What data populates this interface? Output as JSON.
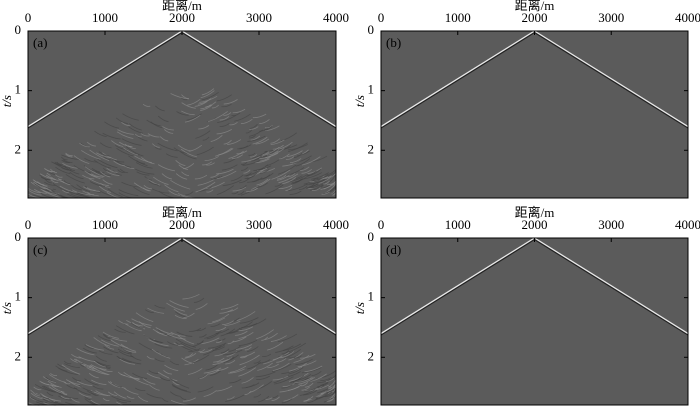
{
  "chart_data": [
    {
      "type": "seismic",
      "panel_label": "(a)",
      "xlabel": "距离/m",
      "ylabel": "t/s",
      "xlim": [
        0,
        4000
      ],
      "ylim": [
        0,
        2.8
      ],
      "xticks": [
        0,
        1000,
        2000,
        3000,
        4000
      ],
      "yticks": [
        0,
        1,
        2
      ],
      "noise": true
    },
    {
      "type": "seismic",
      "panel_label": "(b)",
      "xlabel": "距离/m",
      "ylabel": "t/s",
      "xlim": [
        0,
        4000
      ],
      "ylim": [
        0,
        2.8
      ],
      "xticks": [
        0,
        1000,
        2000,
        3000,
        4000
      ],
      "yticks": [
        0,
        1,
        2
      ],
      "noise": false
    },
    {
      "type": "seismic",
      "panel_label": "(c)",
      "xlabel": "距离/m",
      "ylabel": "t/s",
      "xlim": [
        0,
        4000
      ],
      "ylim": [
        0,
        2.8
      ],
      "xticks": [
        0,
        1000,
        2000,
        3000,
        4000
      ],
      "yticks": [
        0,
        1,
        2
      ],
      "noise": true
    },
    {
      "type": "seismic",
      "panel_label": "(d)",
      "xlabel": "距离/m",
      "ylabel": "t/s",
      "xlim": [
        0,
        4000
      ],
      "ylim": [
        0,
        2.8
      ],
      "xticks": [
        0,
        1000,
        2000,
        3000,
        4000
      ],
      "yticks": [
        0,
        1,
        2
      ],
      "noise": false
    }
  ]
}
